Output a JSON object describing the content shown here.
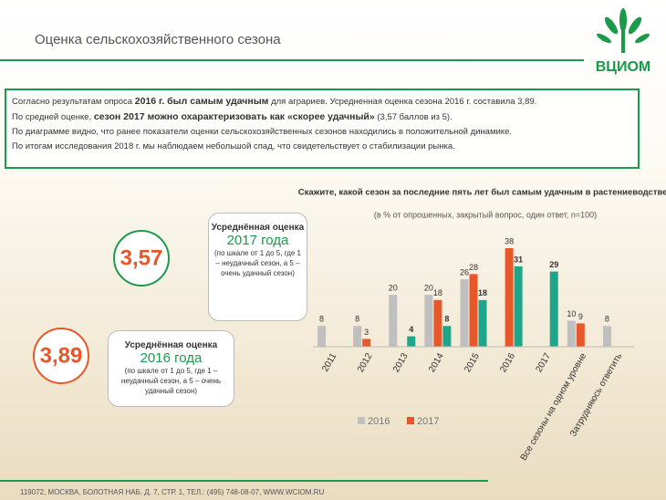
{
  "header": {
    "title": "Оценка сельскохозяйственного сезона",
    "logo": "ВЦИОМ"
  },
  "text_box": {
    "paragraphs": [
      [
        {
          "text": "Согласно результатам опроса "
        },
        {
          "text": "2016 г. был самым удачным",
          "bold": true
        },
        {
          "text": " для аграриев. Усредненная оценка сезона 2016 г. составила 3,89."
        }
      ],
      [
        {
          "text": "По средней оценке, "
        },
        {
          "text": "сезон 2017 можно охарактеризовать как «скорее удачный»",
          "bold": true
        },
        {
          "text": " (3,57 баллов из 5)."
        }
      ],
      [
        {
          "text": "По диаграмме видно, что ранее показатели оценки сельскохозяйственных сезонов находились в положительной динамике."
        }
      ],
      [
        {
          "text": "По итогам исследования 2018 г. мы наблюдаем небольшой спад, что свидетельствует о стабилизации рынка."
        }
      ]
    ]
  },
  "callouts": [
    {
      "score": "3,57",
      "label": "Усреднённая оценка",
      "year": "2017 года",
      "note": "(по шкале от 1 до 5, где 1 – неудачный сезон, а 5 – очень удачный сезон)"
    },
    {
      "score": "3,89",
      "label": "Усреднённая оценка",
      "year": "2016 года",
      "note": "(по шкале от 1 до 5, где 1 – неудачный сезон, а 5 – очень удачный сезон)"
    }
  ],
  "footer": "119072, МОСКВА, БОЛОТНАЯ НАБ. Д. 7, СТР. 1, ТЕЛ.: (495) 748-08-07, WWW.WCIOM.RU",
  "chart_data": {
    "type": "bar",
    "title": "Скажите, какой сезон за последние пять лет был самым удачным в растениеводстве?",
    "subtitle": "(в % от опрошенных, закрытый вопрос, один ответ, n=100)",
    "categories": [
      "2011",
      "2012",
      "2013",
      "2014",
      "2015",
      "2016",
      "2017",
      "Все сезоны на одном уровне",
      "Затрудняюсь ответить"
    ],
    "series": [
      {
        "name": "2016",
        "color": "#bfbfbf",
        "values": [
          8,
          8,
          20,
          20,
          26,
          null,
          null,
          10,
          8
        ]
      },
      {
        "name": "2017",
        "color": "#e8572a",
        "values": [
          null,
          3,
          null,
          18,
          28,
          38,
          null,
          9,
          null
        ]
      },
      {
        "color": "#1fa58a",
        "values": [
          null,
          null,
          4,
          8,
          18,
          31,
          29,
          null,
          null
        ]
      }
    ]
  }
}
